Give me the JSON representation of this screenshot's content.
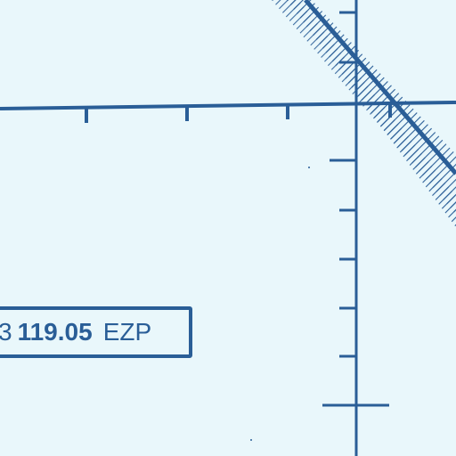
{
  "chart": {
    "colors": {
      "background": "#e9f7fb",
      "ink": "#2a5e97"
    },
    "communication_box": {
      "prefix": "3",
      "frequency": "119.05",
      "identifier": "EZP"
    }
  }
}
